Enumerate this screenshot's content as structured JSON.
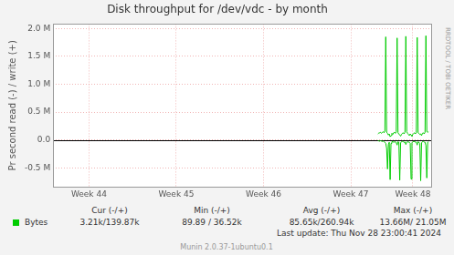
{
  "chart_data": {
    "type": "line",
    "title": "Disk throughput for /dev/vdc - by month",
    "y_label": "Pr second read (-) / write (+)",
    "x": [
      47.81,
      47.82,
      47.83,
      47.84,
      47.85,
      47.86,
      47.87,
      47.88,
      47.89,
      47.9,
      47.91,
      47.92,
      47.93,
      47.94,
      47.95,
      47.96,
      47.97,
      47.98,
      47.99,
      48,
      48.01,
      48.02,
      48.03,
      48.04,
      48.05,
      48.06,
      48.07,
      48.08,
      48.09,
      48.1,
      48.11,
      48.12,
      48.13,
      48.14,
      48.15,
      48.16,
      48.17,
      48.18,
      48.19,
      48.2,
      48.21,
      48.22,
      48.23,
      48.24,
      48.25,
      48.26,
      48.27,
      48.28,
      48.29,
      48.3,
      48.31,
      48.32,
      48.33,
      48.34,
      48.35,
      48.36,
      48.37,
      48.38,
      48.39
    ],
    "series": [
      {
        "name": "Bytes",
        "color": "#00cc00",
        "values": [
          110000,
          125000,
          130000,
          140000,
          120000,
          135000,
          150000,
          130000,
          160000,
          1850000,
          140000,
          120000,
          90000,
          110000,
          60000,
          80000,
          120000,
          100000,
          130000,
          140000,
          120000,
          150000,
          1830000,
          130000,
          110000,
          90000,
          70000,
          100000,
          120000,
          130000,
          110000,
          140000,
          1860000,
          150000,
          120000,
          100000,
          80000,
          110000,
          90000,
          70000,
          100000,
          120000,
          130000,
          110000,
          140000,
          1840000,
          130000,
          120000,
          100000,
          110000,
          80000,
          120000,
          130000,
          110000,
          140000,
          1870000,
          150000,
          140000,
          150000
        ],
        "read_values": [
          -10000,
          -15000,
          -20000,
          -12000,
          -18000,
          -25000,
          -20000,
          -30000,
          -40000,
          -60000,
          -150000,
          -520000,
          -80000,
          -40000,
          -710000,
          -60000,
          -30000,
          -25000,
          -40000,
          -35000,
          -30000,
          -50000,
          -90000,
          -30000,
          -40000,
          -720000,
          -50000,
          -30000,
          -25000,
          -30000,
          -40000,
          -35000,
          -80000,
          -40000,
          -30000,
          -35000,
          -40000,
          -60000,
          -700000,
          -50000,
          -30000,
          -25000,
          -30000,
          -35000,
          -40000,
          -90000,
          -30000,
          -40000,
          -60000,
          -730000,
          -50000,
          -30000,
          -25000,
          -35000,
          -40000,
          -100000,
          -680000,
          -40000,
          -30000
        ]
      }
    ],
    "xlim": [
      44.09,
      48.42
    ],
    "xticks": [
      {
        "value": 44.5,
        "label": "Week 44"
      },
      {
        "value": 45.5,
        "label": "Week 45"
      },
      {
        "value": 46.5,
        "label": "Week 46"
      },
      {
        "value": 47.5,
        "label": "Week 47"
      },
      {
        "value": 48.21,
        "label": "Week 48"
      }
    ],
    "ylim": [
      -840000,
      2080000
    ],
    "yticks": [
      {
        "value": -500000,
        "label": "-0.5 M"
      },
      {
        "value": 0,
        "label": "0.0"
      },
      {
        "value": 500000,
        "label": "0.5 M"
      },
      {
        "value": 1000000,
        "label": "1.0 M"
      },
      {
        "value": 1500000,
        "label": "1.5 M"
      },
      {
        "value": 2000000,
        "label": "2.0 M"
      }
    ],
    "grid": true,
    "legend_table": {
      "columns": [
        "Cur (-/+)",
        "Min (-/+)",
        "Avg (-/+)",
        "Max (-/+)"
      ],
      "cells": [
        "3.21k/139.87k",
        "89.89 / 36.52k",
        "85.65k/260.94k",
        "13.66M/ 21.05M"
      ]
    },
    "last_update": "Last update: Thu Nov 28 23:00:41 2024",
    "version": "Munin 2.0.37-1ubuntu0.1",
    "side_text": "RRDTOOL / TOBI OETIKER"
  }
}
